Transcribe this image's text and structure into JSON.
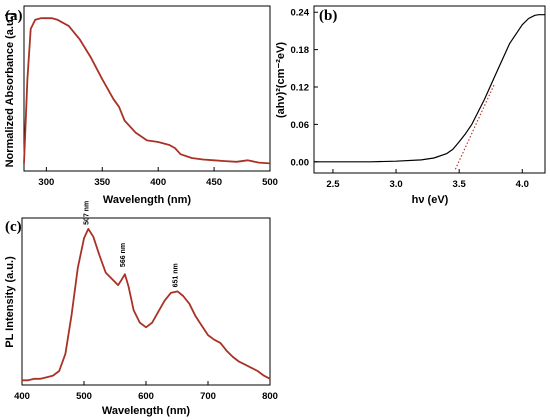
{
  "chart_data": [
    {
      "panel": "(a)",
      "type": "line",
      "xlabel": "Wavelength (nm)",
      "ylabel": "Normalized Absorbance (a.u.)",
      "xlim": [
        280,
        500
      ],
      "ylim": [
        0,
        1.08
      ],
      "xticks": [
        300,
        350,
        400,
        450,
        500
      ],
      "line_color": "#a93226",
      "series": [
        {
          "x": [
            280,
            283,
            286,
            290,
            295,
            300,
            305,
            310,
            320,
            330,
            340,
            350,
            360,
            365,
            370,
            380,
            390,
            400,
            410,
            415,
            420,
            430,
            440,
            450,
            460,
            470,
            480,
            490,
            500
          ],
          "y": [
            0.05,
            0.6,
            0.93,
            0.99,
            1.0,
            1.0,
            1.0,
            0.99,
            0.95,
            0.86,
            0.74,
            0.6,
            0.47,
            0.42,
            0.33,
            0.25,
            0.2,
            0.19,
            0.17,
            0.15,
            0.11,
            0.085,
            0.075,
            0.07,
            0.065,
            0.06,
            0.07,
            0.055,
            0.05
          ]
        }
      ]
    },
    {
      "panel": "(b)",
      "type": "line",
      "xlabel": "hν (eV)",
      "ylabel": "(ahν)²(cm⁻²eV)",
      "xlim": [
        2.35,
        4.18
      ],
      "ylim": [
        -0.018,
        0.25
      ],
      "xticks": [
        2.5,
        3.0,
        3.5,
        4.0
      ],
      "xtick_labels": [
        "2.5",
        "3.0",
        "3.5",
        "4.0"
      ],
      "yticks": [
        0.0,
        0.06,
        0.12,
        0.18,
        0.24
      ],
      "ytick_labels": [
        "0.00",
        "0.06",
        "0.12",
        "0.18",
        "0.24"
      ],
      "line_color": "#000000",
      "fit_color": "#c0392b",
      "series": [
        {
          "x": [
            2.35,
            2.6,
            2.8,
            3.0,
            3.2,
            3.3,
            3.4,
            3.45,
            3.5,
            3.55,
            3.6,
            3.7,
            3.8,
            3.9,
            4.0,
            4.05,
            4.1,
            4.13,
            4.18
          ],
          "y": [
            0.0,
            0.0,
            0.0,
            0.001,
            0.003,
            0.006,
            0.013,
            0.02,
            0.032,
            0.045,
            0.06,
            0.1,
            0.145,
            0.19,
            0.22,
            0.23,
            0.235,
            0.236,
            0.236
          ]
        }
      ],
      "fit": {
        "x": [
          3.47,
          3.78
        ],
        "y": [
          -0.012,
          0.125
        ]
      }
    },
    {
      "panel": "(c)",
      "type": "line",
      "xlabel": "Wavelength (nm)",
      "ylabel": "PL Intensity (a.u.)",
      "xlim": [
        400,
        800
      ],
      "ylim": [
        0,
        1.07
      ],
      "xticks": [
        400,
        500,
        600,
        700,
        800
      ],
      "line_color": "#a93226",
      "annotations": [
        {
          "text": "507 nm",
          "x": 507,
          "y": 1.0
        },
        {
          "text": "566 nm",
          "x": 566,
          "y": 0.73
        },
        {
          "text": "651 nm",
          "x": 651,
          "y": 0.6
        }
      ],
      "series": [
        {
          "x": [
            400,
            410,
            420,
            430,
            440,
            450,
            460,
            470,
            480,
            490,
            500,
            507,
            515,
            525,
            535,
            545,
            555,
            560,
            566,
            572,
            580,
            590,
            600,
            610,
            620,
            630,
            640,
            651,
            660,
            670,
            680,
            690,
            700,
            710,
            720,
            730,
            740,
            750,
            760,
            770,
            780,
            790,
            800
          ],
          "y": [
            0.03,
            0.03,
            0.04,
            0.04,
            0.05,
            0.06,
            0.09,
            0.2,
            0.45,
            0.75,
            0.94,
            1.0,
            0.95,
            0.83,
            0.72,
            0.68,
            0.64,
            0.67,
            0.71,
            0.63,
            0.48,
            0.4,
            0.37,
            0.4,
            0.47,
            0.54,
            0.59,
            0.6,
            0.57,
            0.52,
            0.44,
            0.38,
            0.32,
            0.29,
            0.27,
            0.22,
            0.18,
            0.15,
            0.13,
            0.11,
            0.09,
            0.06,
            0.04
          ]
        }
      ]
    }
  ]
}
